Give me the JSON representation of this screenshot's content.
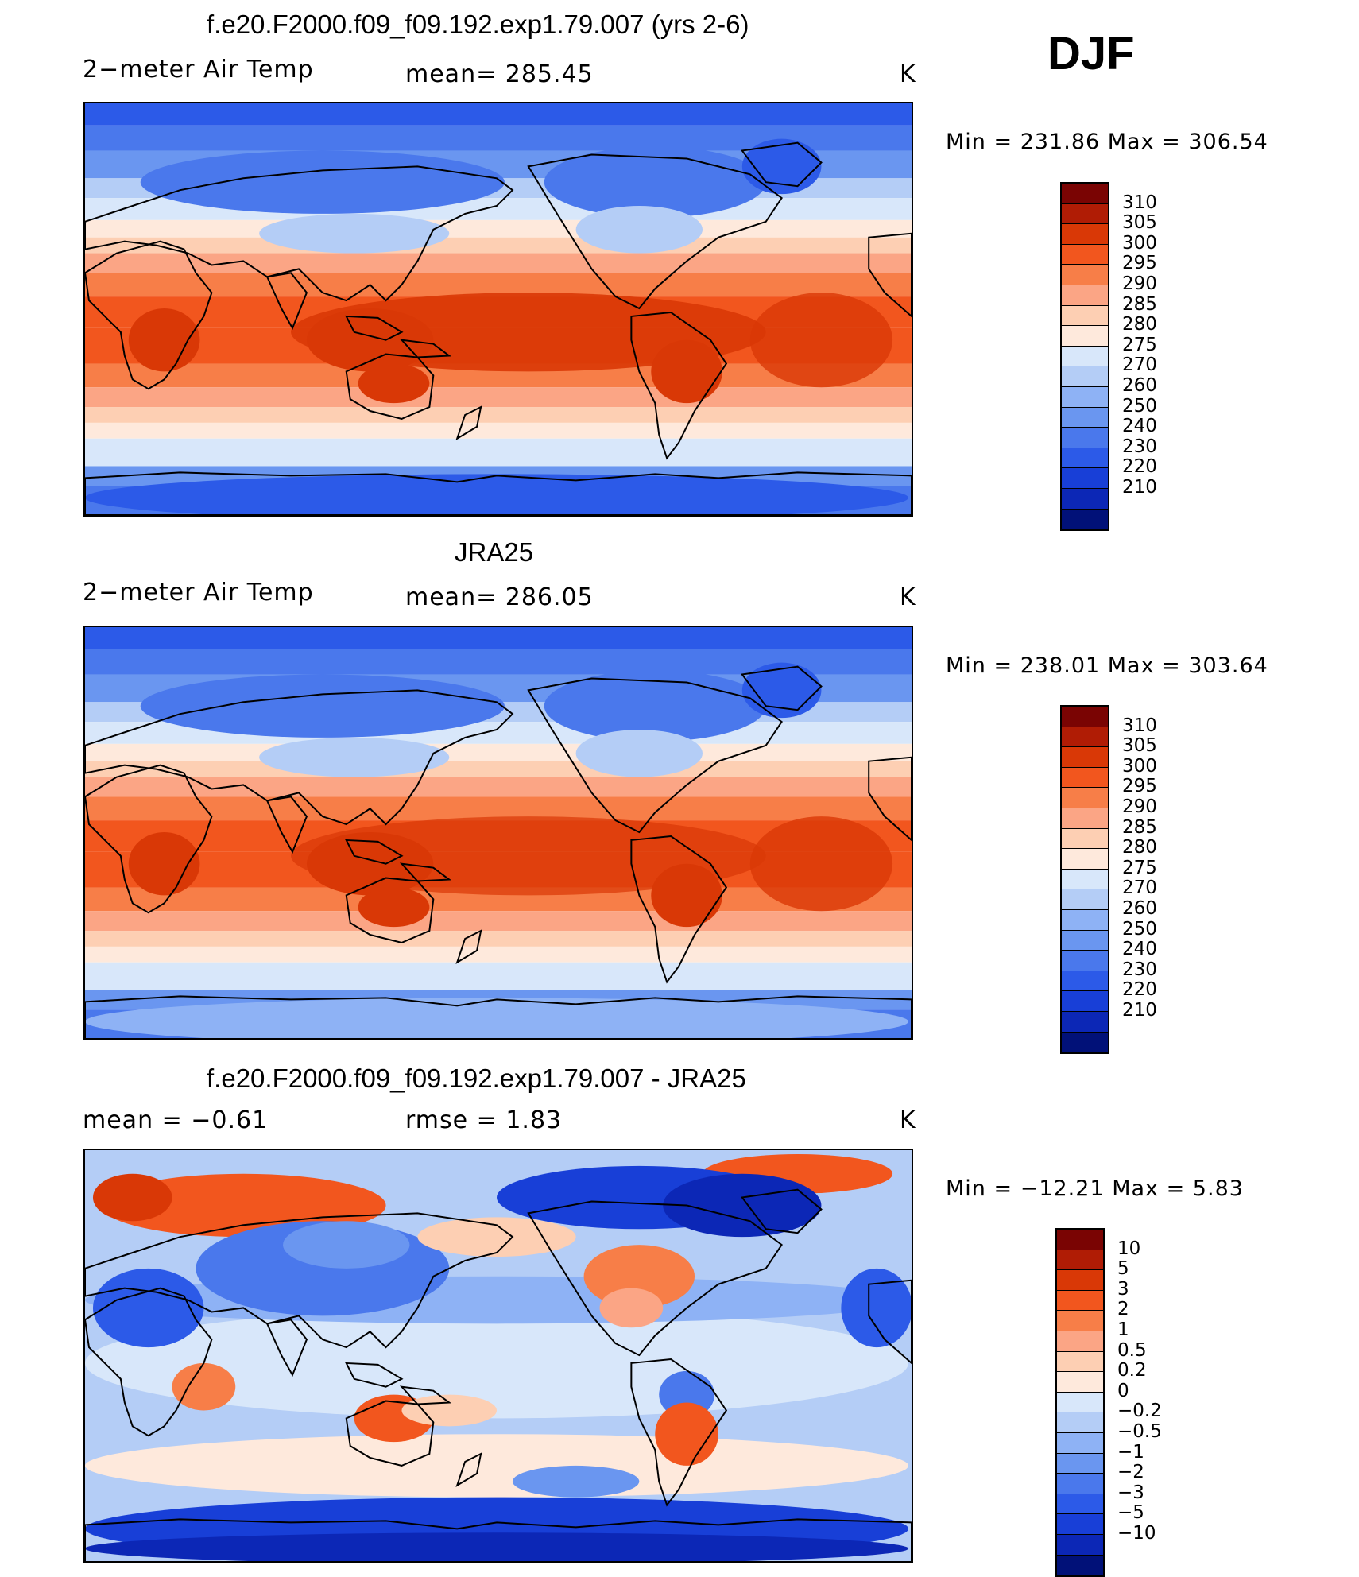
{
  "season": "DJF",
  "panels": [
    {
      "title": "f.e20.F2000.f09_f09.192.exp1.79.007 (yrs 2-6)",
      "left_label": "2−meter Air Temp",
      "center_label": "mean=  285.45",
      "units": "K",
      "minmax": "Min  =  231.86  Max  =  306.54",
      "kind": "abs"
    },
    {
      "title": "JRA25",
      "left_label": "2−meter Air Temp",
      "center_label": "mean=  286.05",
      "units": "K",
      "minmax": "Min  =  238.01  Max  =  303.64",
      "kind": "abs"
    },
    {
      "title": "f.e20.F2000.f09_f09.192.exp1.79.007 - JRA25",
      "left_label": "mean  =     −0.61",
      "center_label": "rmse  =     1.83",
      "units": "K",
      "minmax": "Min  =  −12.21  Max  =     5.83",
      "kind": "diff"
    }
  ],
  "colorbars": {
    "abs": {
      "colors": [
        "#7a0403",
        "#b01c05",
        "#d93806",
        "#f2561e",
        "#f77e48",
        "#fba585",
        "#fdcfb3",
        "#fee9dc",
        "#d8e7fa",
        "#b4cdf6",
        "#8eb2f5",
        "#6a96f0",
        "#4a78ec",
        "#2c5ae8",
        "#183fd7",
        "#0c27b6",
        "#011178"
      ],
      "labels": [
        "310",
        "305",
        "300",
        "295",
        "290",
        "285",
        "280",
        "275",
        "270",
        "260",
        "250",
        "240",
        "230",
        "220",
        "210"
      ]
    },
    "diff": {
      "colors": [
        "#7a0403",
        "#b01c05",
        "#d93806",
        "#f2561e",
        "#f77e48",
        "#fba585",
        "#fdcfb3",
        "#fee9dc",
        "#d8e7fa",
        "#b4cdf6",
        "#8eb2f5",
        "#6a96f0",
        "#4a78ec",
        "#2c5ae8",
        "#183fd7",
        "#0c27b6",
        "#011178"
      ],
      "labels": [
        "10",
        "5",
        "3",
        "2",
        "1",
        "0.5",
        "0.2",
        "0",
        "−0.2",
        "−0.5",
        "−1",
        "−2",
        "−3",
        "−5",
        "−10"
      ]
    }
  }
}
